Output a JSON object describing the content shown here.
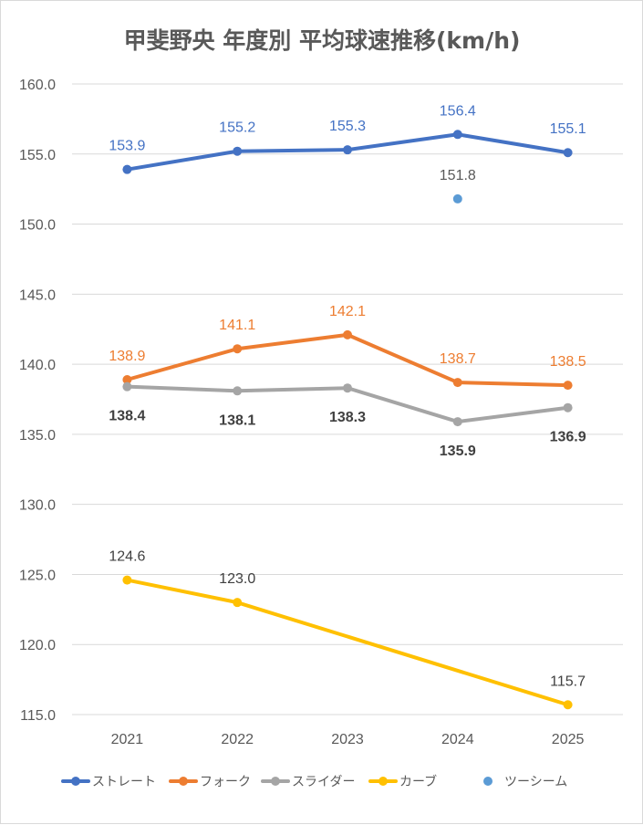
{
  "chart_data": {
    "type": "line",
    "title": "甲斐野央 年度別 平均球速推移(km/h)",
    "xlabel": "",
    "ylabel": "",
    "categories": [
      "2021",
      "2022",
      "2023",
      "2024",
      "2025"
    ],
    "ylim": [
      115,
      160
    ],
    "yticks": [
      "115.0",
      "120.0",
      "125.0",
      "130.0",
      "135.0",
      "140.0",
      "145.0",
      "150.0",
      "155.0",
      "160.0"
    ],
    "grid": true,
    "legend_position": "bottom",
    "series": [
      {
        "name": "ストレート",
        "color": "#4472c4",
        "label_color": "#4472c4",
        "label_bold": false,
        "label_pos": "above",
        "values": [
          153.9,
          155.2,
          155.3,
          156.4,
          155.1
        ],
        "labels": [
          "153.9",
          "155.2",
          "155.3",
          "156.4",
          "155.1"
        ]
      },
      {
        "name": "フォーク",
        "color": "#ed7d31",
        "label_color": "#ed7d31",
        "label_bold": false,
        "label_pos": "above",
        "values": [
          138.9,
          141.1,
          142.1,
          138.7,
          138.5
        ],
        "labels": [
          "138.9",
          "141.1",
          "142.1",
          "138.7",
          "138.5"
        ]
      },
      {
        "name": "スライダー",
        "color": "#a5a5a5",
        "label_color": "#404040",
        "label_bold": true,
        "label_pos": "below",
        "values": [
          138.4,
          138.1,
          138.3,
          135.9,
          136.9
        ],
        "labels": [
          "138.4",
          "138.1",
          "138.3",
          "135.9",
          "136.9"
        ]
      },
      {
        "name": "カーブ",
        "color": "#ffc000",
        "label_color": "#404040",
        "label_bold": false,
        "label_pos": "above",
        "values": [
          124.6,
          123.0,
          null,
          null,
          115.7
        ],
        "labels": [
          "124.6",
          "123.0",
          null,
          null,
          "115.7"
        ]
      },
      {
        "name": "ツーシーム",
        "color": "#5b9bd5",
        "label_color": "#595959",
        "label_bold": false,
        "label_pos": "above",
        "values": [
          null,
          null,
          null,
          151.8,
          null
        ],
        "labels": [
          null,
          null,
          null,
          "151.8",
          null
        ]
      }
    ]
  }
}
